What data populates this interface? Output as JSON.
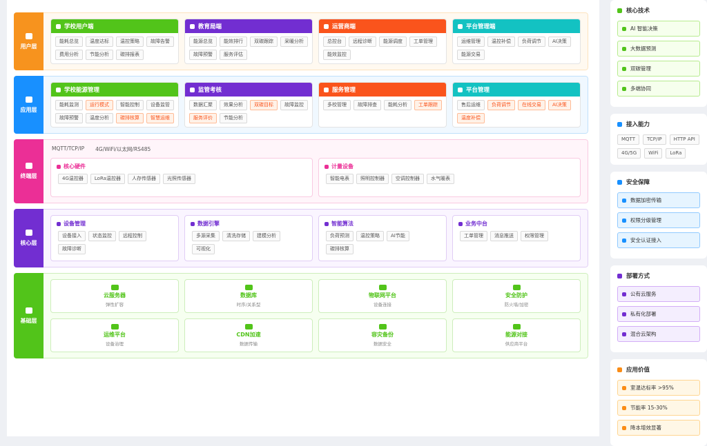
{
  "layers": [
    {
      "label": "用户层",
      "color": "#f7931e",
      "bg": "#fff9f0",
      "border": "#fde2bd",
      "cards": [
        {
          "title": "学校用户端",
          "color": "#52c41a",
          "tags": [
            "能耗总览",
            "温度达标",
            "温控策略",
            "故障告警",
            "费用分析",
            "节能分析",
            "碳排报表"
          ],
          "highlight": []
        },
        {
          "title": "教育局端",
          "color": "#722ed1",
          "tags": [
            "能源总览",
            "能效排行",
            "双碳跟踪",
            "采暖分析",
            "故障预警",
            "服务评估"
          ],
          "highlight": []
        },
        {
          "title": "运营商端",
          "color": "#fa541c",
          "tags": [
            "总控台",
            "远程诊断",
            "能源调度",
            "工单管理",
            "能效监控"
          ],
          "highlight": []
        },
        {
          "title": "平台管理端",
          "color": "#13c2c2",
          "tags": [
            "运维管理",
            "温控补偿",
            "负荷调节",
            "AI决策",
            "能源交易"
          ],
          "highlight": []
        }
      ]
    },
    {
      "label": "应用层",
      "color": "#1890ff",
      "bg": "#f0f8ff",
      "border": "#bfe0fb",
      "cards": [
        {
          "title": "学校能源管理",
          "color": "#52c41a",
          "tags": [
            "能耗监测",
            "运行模式",
            "智能控制",
            "设备监管",
            "故障预警",
            "温度分析",
            "碳排核算",
            "智慧运维"
          ],
          "highlight": [
            1,
            6,
            7
          ]
        },
        {
          "title": "监管考核",
          "color": "#722ed1",
          "tags": [
            "数据汇聚",
            "效果分析",
            "双碳目标",
            "故障监控",
            "服务评价",
            "节能分析"
          ],
          "highlight": [
            2,
            4
          ]
        },
        {
          "title": "服务管理",
          "color": "#fa541c",
          "tags": [
            "多校管理",
            "故障排查",
            "能耗分析",
            "工单跟踪"
          ],
          "highlight": [
            3
          ]
        },
        {
          "title": "平台管理",
          "color": "#13c2c2",
          "tags": [
            "售后运维",
            "负荷调节",
            "在线交易",
            "AI决策",
            "温度补偿"
          ],
          "highlight": [
            1,
            2,
            3,
            4
          ]
        }
      ]
    },
    {
      "label": "终端层",
      "color": "#eb2f96",
      "bg": "#fff5fa",
      "border": "#f9c9e1",
      "protocols": [
        "MQTT/TCP/IP",
        "4G/WiFi/以太网/RS485"
      ],
      "groups": [
        {
          "title": "核心硬件",
          "tags": [
            "4G温控器",
            "LoRa温控器",
            "人存传感器",
            "光照传感器"
          ]
        },
        {
          "title": "计量设备",
          "tags": [
            "智能电表",
            "照明控制器",
            "空调控制器",
            "水气暖表"
          ]
        }
      ]
    },
    {
      "label": "核心层",
      "color": "#722ed1",
      "bg": "#faf5ff",
      "border": "#e0cdf5",
      "groups": [
        {
          "title": "设备管理",
          "tags": [
            "设备接入",
            "状态监控",
            "远程控制",
            "故障诊断"
          ]
        },
        {
          "title": "数据引擎",
          "tags": [
            "多源采集",
            "清洗存储",
            "建模分析",
            "可视化"
          ]
        },
        {
          "title": "智能算法",
          "tags": [
            "负荷预测",
            "温控策略",
            "AI节能",
            "碳排核算"
          ]
        },
        {
          "title": "业务中台",
          "tags": [
            "工单管理",
            "消息推送",
            "权限管理"
          ]
        }
      ]
    },
    {
      "label": "基础层",
      "color": "#52c41a",
      "bg": "#f6fff0",
      "border": "#cdeebb",
      "services": [
        {
          "title": "云服务器",
          "desc": "弹性扩容"
        },
        {
          "title": "数据库",
          "desc": "时序/关系型"
        },
        {
          "title": "物联网平台",
          "desc": "设备连接"
        },
        {
          "title": "安全防护",
          "desc": "防火墙/加密"
        },
        {
          "title": "运维平台",
          "desc": "设备治理"
        },
        {
          "title": "CDN加速",
          "desc": "数据传输"
        },
        {
          "title": "容灾备份",
          "desc": "数据安全"
        },
        {
          "title": "能源对接",
          "desc": "供应商平台"
        }
      ]
    }
  ],
  "sidebar": [
    {
      "title": "核心技术",
      "color": "#52c41a",
      "bg": "#f6ffed",
      "border": "#b7eb8f",
      "items": [
        "AI 智能决策",
        "大数据预测",
        "双碳管理",
        "多端协同"
      ]
    },
    {
      "title": "接入能力",
      "color": "#1890ff",
      "tags": [
        "MQTT",
        "TCP/IP",
        "HTTP API",
        "4G/5G",
        "WiFi",
        "LoRa"
      ]
    },
    {
      "title": "安全保障",
      "color": "#1890ff",
      "bg": "#e6f4ff",
      "border": "#91caff",
      "items": [
        "数据加密传输",
        "权限分级管理",
        "安全认证接入"
      ]
    },
    {
      "title": "部署方式",
      "color": "#722ed1",
      "bg": "#f4eefe",
      "border": "#d3adf7",
      "items": [
        "公有云服务",
        "私有化部署",
        "混合云架构"
      ]
    },
    {
      "title": "应用价值",
      "color": "#fa8c16",
      "bg": "#fff7e6",
      "border": "#ffd591",
      "items": [
        "室温达标率 >95%",
        "节能率 15-30%",
        "降本增效显著"
      ]
    }
  ]
}
